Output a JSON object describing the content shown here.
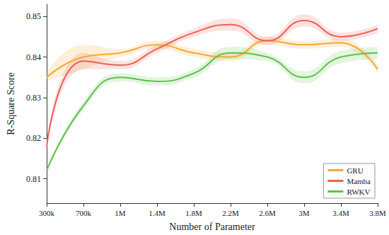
{
  "chart_data": {
    "type": "line",
    "x_label": "Number of Parameter",
    "y_label": "R-Square Score",
    "categories": [
      "300k",
      "700k",
      "1M",
      "1.4M",
      "1.8M",
      "2.2M",
      "2.6M",
      "3M",
      "3.4M",
      "3.8M"
    ],
    "series": [
      {
        "name": "GRU",
        "color": "#f5a833",
        "values": [
          0.835,
          0.84,
          0.841,
          0.843,
          0.841,
          0.84,
          0.844,
          0.843,
          0.8435,
          0.837
        ],
        "error": [
          0.001,
          0.003,
          0.001,
          0.001,
          0.001,
          0.001,
          0.001,
          0.001,
          0.001,
          0.001
        ]
      },
      {
        "name": "Mamba",
        "color": "#ef5f55",
        "values": [
          0.818,
          0.839,
          0.838,
          0.842,
          0.846,
          0.848,
          0.844,
          0.849,
          0.845,
          0.847
        ],
        "error": [
          0.001,
          0.002,
          0.001,
          0.001,
          0.001,
          0.0015,
          0.001,
          0.0015,
          0.001,
          0.001
        ]
      },
      {
        "name": "RWKV",
        "color": "#5ec24b",
        "values": [
          0.812,
          0.828,
          0.835,
          0.834,
          0.836,
          0.841,
          0.84,
          0.835,
          0.84,
          0.841
        ],
        "error": [
          0.0005,
          0.001,
          0.001,
          0.001,
          0.001,
          0.0015,
          0.001,
          0.0015,
          0.0015,
          0.0015
        ]
      }
    ],
    "ylim": [
      0.804,
      0.853
    ],
    "yticks": [
      0.81,
      0.82,
      0.83,
      0.84,
      0.85
    ],
    "grid": false,
    "legend": "lower right",
    "line_style": "smooth"
  }
}
